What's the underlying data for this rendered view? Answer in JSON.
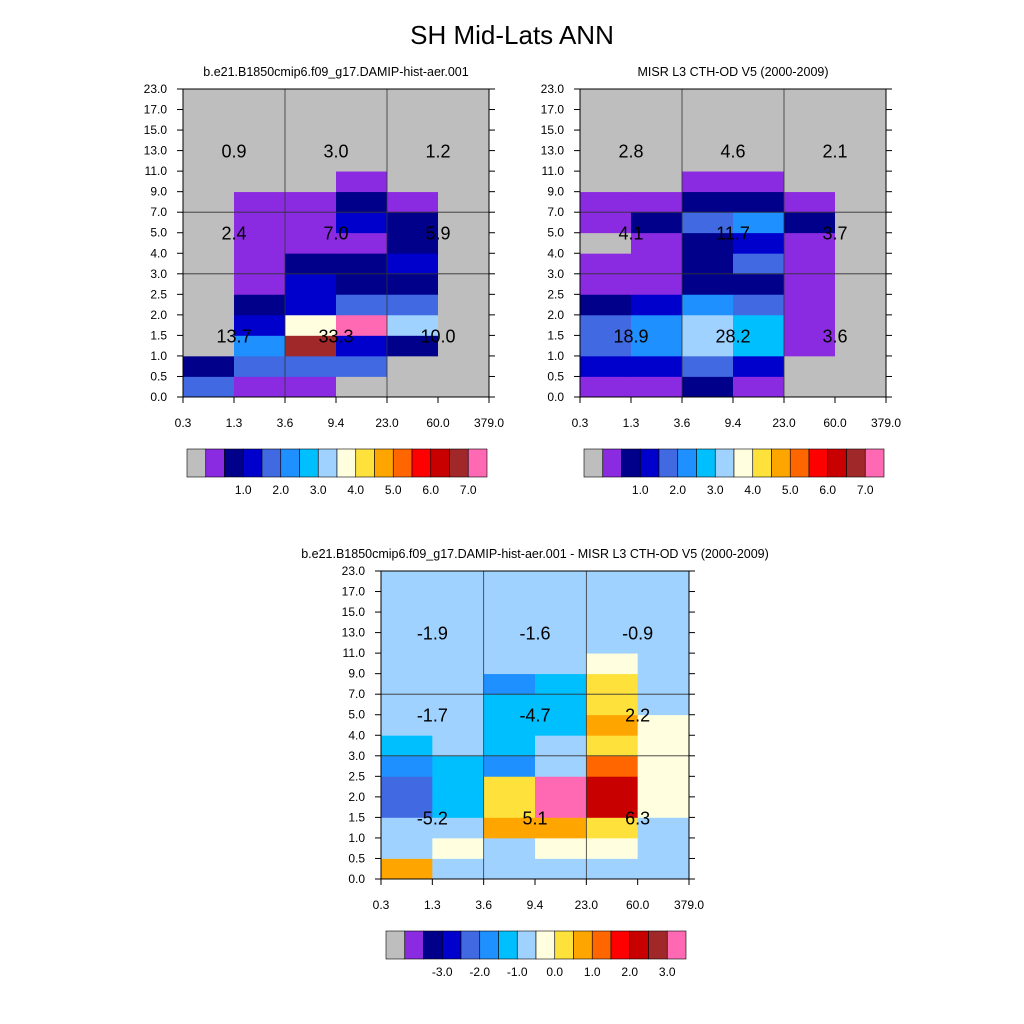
{
  "title": "SH Mid-Lats ANN",
  "colors": {
    "missing": "#bebebe",
    "palette_abs": [
      "#bebebe",
      "#8a2be2",
      "#00008b",
      "#0000cd",
      "#4169e1",
      "#1e90ff",
      "#00bfff",
      "#a0d2ff",
      "#ffffe0",
      "#ffe13c",
      "#ffa500",
      "#ff6600",
      "#ff0000",
      "#c80000",
      "#a02828",
      "#ff69b4"
    ],
    "palette_diff": [
      "#bebebe",
      "#8a2be2",
      "#00008b",
      "#0000cd",
      "#4169e1",
      "#1e90ff",
      "#00bfff",
      "#a0d2ff",
      "#ffffe0",
      "#ffe13c",
      "#ffa500",
      "#ff6600",
      "#ff0000",
      "#c80000",
      "#a02828",
      "#ff69b4"
    ]
  },
  "x_ticks": [
    "0.3",
    "1.3",
    "3.6",
    "9.4",
    "23.0",
    "60.0",
    "379.0"
  ],
  "y_ticks": [
    "0.0",
    "0.5",
    "1.0",
    "1.5",
    "2.0",
    "2.5",
    "3.0",
    "4.0",
    "5.0",
    "7.0",
    "9.0",
    "11.0",
    "13.0",
    "15.0",
    "17.0",
    "23.0"
  ],
  "colorbar_abs_labels": [
    "1.0",
    "2.0",
    "3.0",
    "4.0",
    "5.0",
    "6.0",
    "7.0"
  ],
  "colorbar_diff_labels": [
    "-3.0",
    "-2.0",
    "-1.0",
    "0.0",
    "1.0",
    "2.0",
    "3.0"
  ],
  "chart_data": [
    {
      "type": "heatmap",
      "title": "b.e21.B1850cmip6.f09_g17.DAMIP-hist-aer.001",
      "x_edges": [
        "0.3",
        "1.3",
        "3.6",
        "9.4",
        "23.0",
        "60.0",
        "379.0"
      ],
      "y_edges": [
        "0.0",
        "0.5",
        "1.0",
        "1.5",
        "2.0",
        "2.5",
        "3.0",
        "4.0",
        "5.0",
        "7.0",
        "9.0",
        "11.0",
        "13.0",
        "15.0",
        "17.0",
        "23.0"
      ],
      "cell_colors": [
        [
          4,
          1,
          1,
          0,
          0,
          0
        ],
        [
          2,
          4,
          4,
          4,
          0,
          0
        ],
        [
          0,
          5,
          14,
          3,
          2,
          0
        ],
        [
          0,
          3,
          8,
          15,
          7,
          0
        ],
        [
          0,
          2,
          3,
          4,
          4,
          0
        ],
        [
          0,
          1,
          3,
          2,
          2,
          0
        ],
        [
          0,
          1,
          2,
          2,
          3,
          0
        ],
        [
          0,
          1,
          1,
          1,
          2,
          0
        ],
        [
          0,
          1,
          1,
          3,
          2,
          0
        ],
        [
          0,
          1,
          1,
          2,
          1,
          0
        ],
        [
          0,
          0,
          0,
          1,
          0,
          0
        ],
        [
          0,
          0,
          0,
          0,
          0,
          0
        ],
        [
          0,
          0,
          0,
          0,
          0,
          0
        ],
        [
          0,
          0,
          0,
          0,
          0,
          0
        ],
        [
          0,
          0,
          0,
          0,
          0,
          0
        ]
      ],
      "block_labels": [
        {
          "text": "13.7",
          "col": 0,
          "row": 0
        },
        {
          "text": "33.3",
          "col": 1,
          "row": 0
        },
        {
          "text": "10.0",
          "col": 2,
          "row": 0
        },
        {
          "text": "2.4",
          "col": 0,
          "row": 1
        },
        {
          "text": "7.0",
          "col": 1,
          "row": 1
        },
        {
          "text": "5.9",
          "col": 2,
          "row": 1
        },
        {
          "text": "0.9",
          "col": 0,
          "row": 2
        },
        {
          "text": "3.0",
          "col": 1,
          "row": 2
        },
        {
          "text": "1.2",
          "col": 2,
          "row": 2
        }
      ]
    },
    {
      "type": "heatmap",
      "title": "MISR L3 CTH-OD V5 (2000-2009)",
      "x_edges": [
        "0.3",
        "1.3",
        "3.6",
        "9.4",
        "23.0",
        "60.0",
        "379.0"
      ],
      "y_edges": [
        "0.0",
        "0.5",
        "1.0",
        "1.5",
        "2.0",
        "2.5",
        "3.0",
        "4.0",
        "5.0",
        "7.0",
        "9.0",
        "11.0",
        "13.0",
        "15.0",
        "17.0",
        "23.0"
      ],
      "cell_colors": [
        [
          1,
          1,
          2,
          1,
          0,
          0
        ],
        [
          3,
          3,
          4,
          3,
          0,
          0
        ],
        [
          4,
          5,
          7,
          6,
          1,
          0
        ],
        [
          4,
          5,
          7,
          6,
          1,
          0
        ],
        [
          2,
          3,
          5,
          4,
          1,
          0
        ],
        [
          1,
          1,
          2,
          2,
          1,
          0
        ],
        [
          1,
          1,
          2,
          4,
          1,
          0
        ],
        [
          0,
          1,
          2,
          3,
          1,
          0
        ],
        [
          1,
          2,
          4,
          5,
          2,
          0
        ],
        [
          1,
          1,
          2,
          2,
          1,
          0
        ],
        [
          0,
          0,
          1,
          1,
          0,
          0
        ],
        [
          0,
          0,
          0,
          0,
          0,
          0
        ],
        [
          0,
          0,
          0,
          0,
          0,
          0
        ],
        [
          0,
          0,
          0,
          0,
          0,
          0
        ],
        [
          0,
          0,
          0,
          0,
          0,
          0
        ]
      ],
      "block_labels": [
        {
          "text": "18.9",
          "col": 0,
          "row": 0
        },
        {
          "text": "28.2",
          "col": 1,
          "row": 0
        },
        {
          "text": "3.6",
          "col": 2,
          "row": 0
        },
        {
          "text": "4.1",
          "col": 0,
          "row": 1
        },
        {
          "text": "11.7",
          "col": 1,
          "row": 1
        },
        {
          "text": "3.7",
          "col": 2,
          "row": 1
        },
        {
          "text": "2.8",
          "col": 0,
          "row": 2
        },
        {
          "text": "4.6",
          "col": 1,
          "row": 2
        },
        {
          "text": "2.1",
          "col": 2,
          "row": 2
        }
      ]
    },
    {
      "type": "heatmap",
      "title": "b.e21.B1850cmip6.f09_g17.DAMIP-hist-aer.001 - MISR L3 CTH-OD V5 (2000-2009)",
      "x_edges": [
        "0.3",
        "1.3",
        "3.6",
        "9.4",
        "23.0",
        "60.0",
        "379.0"
      ],
      "y_edges": [
        "0.0",
        "0.5",
        "1.0",
        "1.5",
        "2.0",
        "2.5",
        "3.0",
        "4.0",
        "5.0",
        "7.0",
        "9.0",
        "11.0",
        "13.0",
        "15.0",
        "17.0",
        "23.0"
      ],
      "cell_colors": [
        [
          10,
          7,
          7,
          7,
          7,
          7
        ],
        [
          7,
          8,
          7,
          8,
          8,
          7
        ],
        [
          7,
          7,
          10,
          10,
          9,
          7
        ],
        [
          4,
          6,
          9,
          15,
          13,
          8
        ],
        [
          4,
          6,
          9,
          15,
          13,
          8
        ],
        [
          5,
          6,
          5,
          7,
          11,
          8
        ],
        [
          6,
          7,
          6,
          7,
          9,
          8
        ],
        [
          7,
          7,
          6,
          6,
          10,
          8
        ],
        [
          7,
          7,
          6,
          6,
          9,
          7
        ],
        [
          7,
          7,
          5,
          6,
          9,
          7
        ],
        [
          7,
          7,
          7,
          7,
          8,
          7
        ],
        [
          7,
          7,
          7,
          7,
          7,
          7
        ],
        [
          7,
          7,
          7,
          7,
          7,
          7
        ],
        [
          7,
          7,
          7,
          7,
          7,
          7
        ],
        [
          7,
          7,
          7,
          7,
          7,
          7
        ]
      ],
      "block_labels": [
        {
          "text": "-5.2",
          "col": 0,
          "row": 0
        },
        {
          "text": "5.1",
          "col": 1,
          "row": 0
        },
        {
          "text": "6.3",
          "col": 2,
          "row": 0
        },
        {
          "text": "-1.7",
          "col": 0,
          "row": 1
        },
        {
          "text": "-4.7",
          "col": 1,
          "row": 1
        },
        {
          "text": "2.2",
          "col": 2,
          "row": 1
        },
        {
          "text": "-1.9",
          "col": 0,
          "row": 2
        },
        {
          "text": "-1.6",
          "col": 1,
          "row": 2
        },
        {
          "text": "-0.9",
          "col": 2,
          "row": 2
        }
      ]
    }
  ]
}
